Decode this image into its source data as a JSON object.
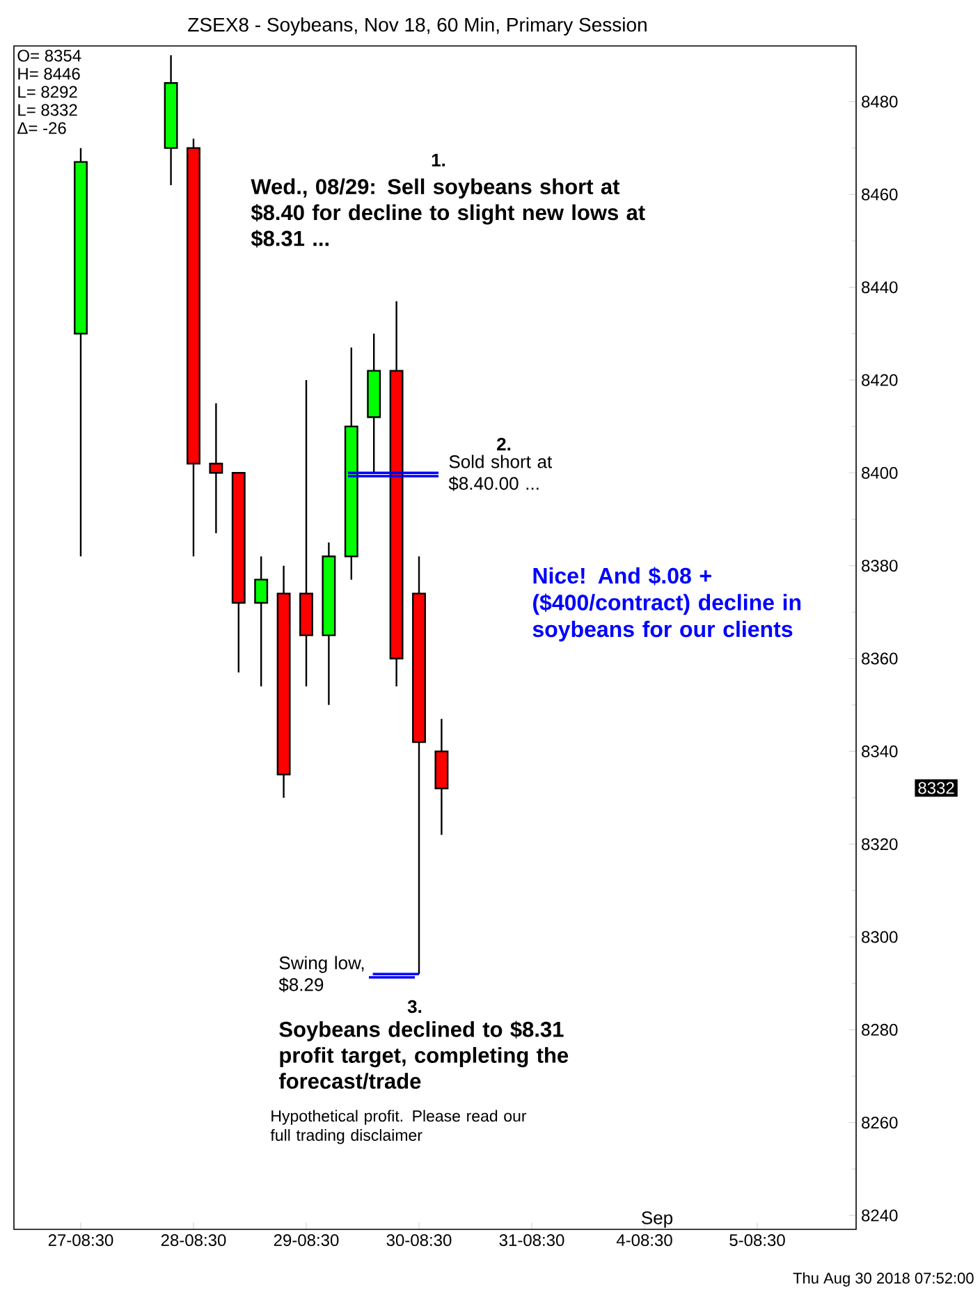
{
  "chart_data": {
    "type": "candlestick",
    "title": "ZSEX8 - Soybeans, Nov 18, 60 Min, Primary Session",
    "categories": [
      "27-08:30",
      null,
      null,
      null,
      null,
      "28-08:30",
      null,
      null,
      null,
      null,
      "29-08:30",
      null,
      null,
      null,
      null,
      "30-08:30",
      null,
      null,
      null,
      null,
      "31-08:30",
      null,
      null,
      null,
      null,
      "4-08:30",
      null,
      null,
      null,
      null,
      "5-08:30",
      null,
      null,
      null,
      null
    ],
    "ohlc": [
      [
        8430,
        8470,
        8382,
        8467
      ],
      null,
      null,
      null,
      [
        8470,
        8490,
        8462,
        8484
      ],
      [
        8470,
        8472,
        8382,
        8402
      ],
      [
        8402,
        8415,
        8387,
        8400
      ],
      [
        8400,
        8400,
        8357,
        8372
      ],
      [
        8372,
        8382,
        8354,
        8377
      ],
      [
        8374,
        8380,
        8330,
        8335
      ],
      [
        8374,
        8420,
        8354,
        8365
      ],
      [
        8365,
        8385,
        8350,
        8382
      ],
      [
        8382,
        8427,
        8377,
        8410
      ],
      [
        8412,
        8430,
        8400,
        8422
      ],
      [
        8422,
        8437,
        8354,
        8360
      ],
      [
        8374,
        8382,
        8292,
        8342
      ],
      [
        8340,
        8347,
        8322,
        8332
      ],
      null,
      null,
      null,
      null,
      null,
      null,
      null,
      null,
      null,
      null,
      null,
      null,
      null,
      null,
      null,
      null,
      null,
      null
    ],
    "colors": [
      "#00ff00",
      null,
      null,
      null,
      "#00ff00",
      "#ff0000",
      "#ff0000",
      "#ff0000",
      "#00ff00",
      "#ff0000",
      "#ff0000",
      "#00ff00",
      "#00ff00",
      "#00ff00",
      "#ff0000",
      "#ff0000",
      "#ff0000",
      null,
      null,
      null,
      null,
      null,
      null,
      null,
      null,
      null,
      null,
      null,
      null,
      null,
      null,
      null,
      null,
      null,
      null
    ],
    "ylim": [
      8237,
      8492
    ],
    "ref_lines": [
      {
        "axis": "y",
        "value": 8400,
        "label": "Sold short at $8.40.00 ...",
        "color": "#0000ff"
      }
    ],
    "yticks": [
      8240,
      8260,
      8280,
      8300,
      8320,
      8340,
      8360,
      8380,
      8400,
      8420,
      8440,
      8460,
      8480
    ],
    "annotations": [
      "O= 8354",
      "H= 8446",
      "L= 8292",
      "L= 8332",
      "Δ= -26",
      "1.",
      "Wed., 08/29: Sell soybeans short at $8.40 for decline to slight new lows at $8.31 ...",
      "2.",
      "Nice!  And $.08 + ($400/contract) decline in soybeans for our clients",
      {
        "text": "Swing low, $8.29",
        "x": "30-08:30",
        "y": 8292
      },
      "3.",
      "Soybeans declined to $8.31 profit target, completing the forecast/trade",
      "Hypothetical profit. Please read our full trading disclaimer",
      "Sep",
      "8332",
      "Thu Aug 30 2018 07:52:00"
    ]
  }
}
